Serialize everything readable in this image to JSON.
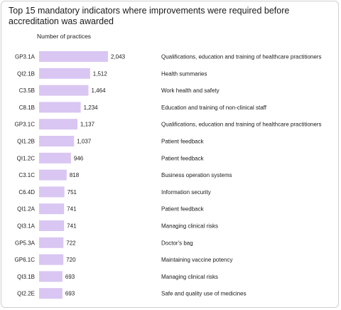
{
  "chart_data": {
    "type": "bar",
    "orientation": "horizontal",
    "title": "Top 15 mandatory indicators where improvements were required before accreditation was awarded",
    "ylabel": "Number of practices",
    "bar_color": "#d9c6f2",
    "categories": [
      "GP3.1A",
      "QI2.1B",
      "C3.5B",
      "C8.1B",
      "GP3.1C",
      "QI1.2B",
      "QI1.2C",
      "C3.1C",
      "C6.4D",
      "QI1.2A",
      "QI3.1A",
      "GP5.3A",
      "GP6.1C",
      "QI3.1B",
      "QI2.2E"
    ],
    "values": [
      2043,
      1512,
      1464,
      1234,
      1137,
      1037,
      946,
      818,
      751,
      741,
      741,
      722,
      720,
      693,
      693
    ],
    "value_labels": [
      "2,043",
      "1,512",
      "1,464",
      "1,234",
      "1,137",
      "1,037",
      "946",
      "818",
      "751",
      "741",
      "741",
      "722",
      "720",
      "693",
      "693"
    ],
    "descriptions": [
      "Qualifications, education and training of healthcare practitioners",
      "Health summaries",
      "Work health and safety",
      "Education and training of non-clinical staff",
      "Qualifications, education and training of healthcare practitioners",
      "Patient feedback",
      "Patient feedback",
      "Business operation systems",
      "Information security",
      "Patient feedback",
      "Managing clinical risks",
      "Doctor's bag",
      "Maintaining vaccine potency",
      "Managing clinical risks",
      "Safe and quality use of medicines"
    ]
  }
}
